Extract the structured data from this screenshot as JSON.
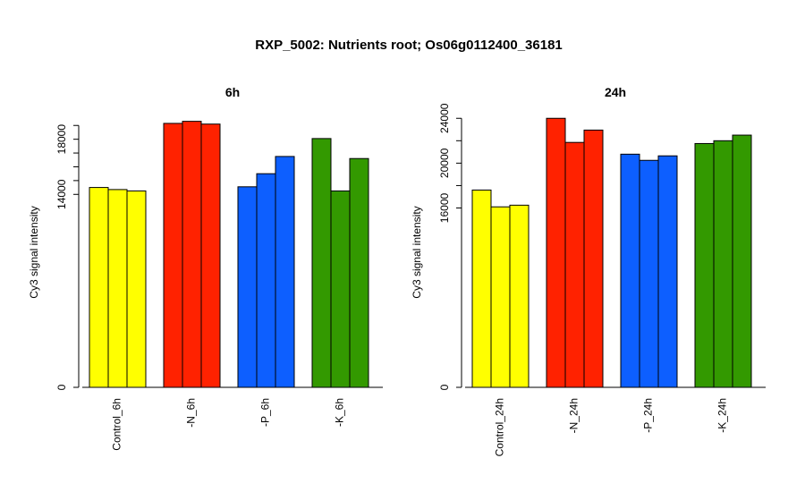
{
  "figure": {
    "title": "RXP_5002: Nutrients root; Os06g0112400_36181"
  },
  "chart_data": [
    {
      "type": "bar",
      "title": "6h",
      "ylabel": "Cy3 signal intensity",
      "ylim": [
        0,
        19600
      ],
      "yticks": [
        {
          "value": 0,
          "label": "0"
        },
        {
          "value": 14000,
          "label": "14000"
        },
        {
          "value": 18000,
          "label": "18000"
        }
      ],
      "minor_ticks": [
        15000,
        16000,
        17000,
        19000
      ],
      "groups": [
        {
          "label": "Control_6h",
          "color": "#ffff00",
          "values": [
            14500,
            14350,
            14250
          ]
        },
        {
          "label": "-N_6h",
          "color": "#ff2200",
          "values": [
            19150,
            19300,
            19100
          ]
        },
        {
          "label": "-P_6h",
          "color": "#0d5fff",
          "values": [
            14550,
            15500,
            16750
          ]
        },
        {
          "label": "-K_6h",
          "color": "#339900",
          "values": [
            18050,
            14250,
            16600
          ]
        }
      ]
    },
    {
      "type": "bar",
      "title": "24h",
      "ylabel": "Cy3 signal intensity",
      "ylim": [
        0,
        24100
      ],
      "yticks": [
        {
          "value": 0,
          "label": "0"
        },
        {
          "value": 16000,
          "label": "16000"
        },
        {
          "value": 20000,
          "label": "20000"
        },
        {
          "value": 24000,
          "label": "24000"
        }
      ],
      "minor_ticks": [
        18000,
        22000
      ],
      "groups": [
        {
          "label": "Control_24h",
          "color": "#ffff00",
          "values": [
            17600,
            16100,
            16250
          ]
        },
        {
          "label": "-N_24h",
          "color": "#ff2200",
          "values": [
            24000,
            21850,
            22950
          ]
        },
        {
          "label": "-P_24h",
          "color": "#0d5fff",
          "values": [
            20800,
            20250,
            20650
          ]
        },
        {
          "label": "-K_24h",
          "color": "#339900",
          "values": [
            21750,
            22000,
            22500
          ]
        }
      ]
    }
  ]
}
